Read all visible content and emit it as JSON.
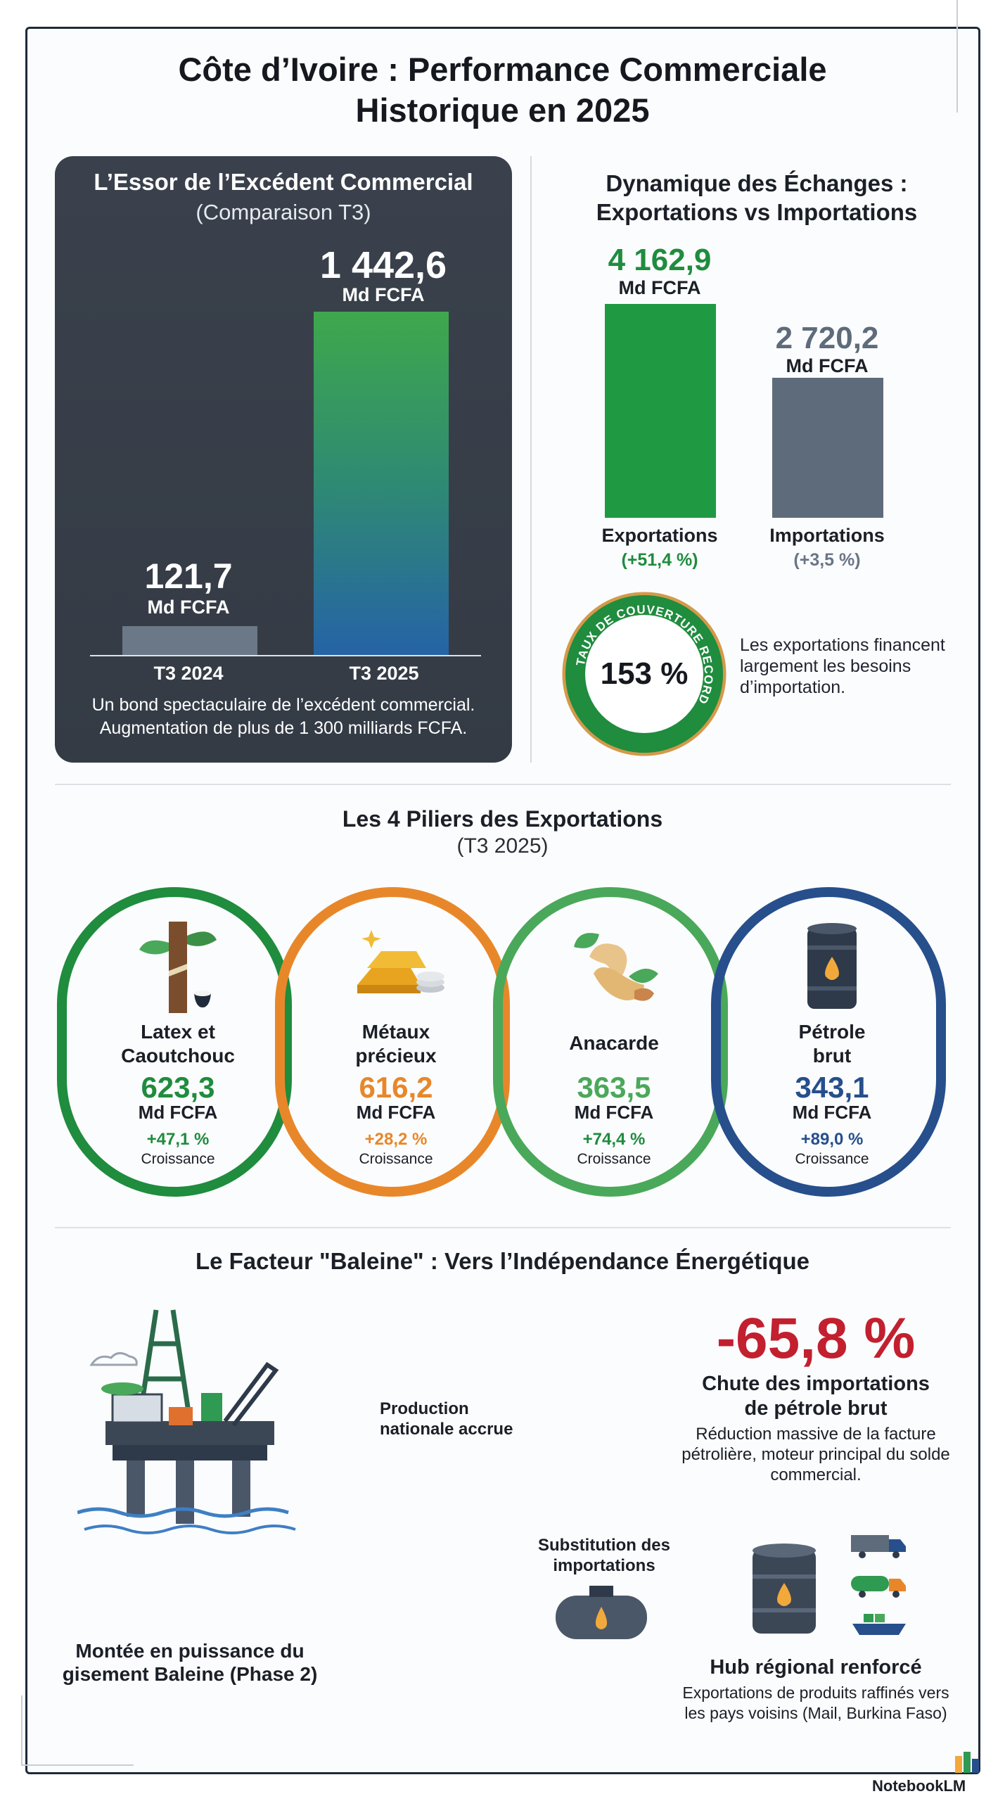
{
  "title": "Côte d’Ivoire : Performance Commerciale Historique en 2025",
  "colors": {
    "green": "#1f8c3e",
    "orange": "#e8872a",
    "lightgreen": "#4aa85a",
    "blue": "#264f8c",
    "slate": "#5e6b7b",
    "red": "#c2202f",
    "dark_panel": "#363d47"
  },
  "chart_data": [
    {
      "type": "bar",
      "title": "L’Essor de l’Excédent Commercial",
      "subtitle": "(Comparaison T3)",
      "categories": [
        "T3 2024",
        "T3 2025"
      ],
      "values": [
        121.7,
        1442.6
      ],
      "value_labels": [
        "121,7",
        "1 442,6"
      ],
      "unit": "Md FCFA",
      "caption": "Un bond spectaculaire de l’excédent commercial. Augmentation de plus de 1 300 milliards FCFA."
    },
    {
      "type": "bar",
      "title": "Dynamique des Échanges : Exportations vs Importations",
      "categories": [
        "Exportations",
        "Importations"
      ],
      "values": [
        4162.9,
        2720.2
      ],
      "value_labels": [
        "4 162,9",
        "2 720,2"
      ],
      "unit": "Md FCFA",
      "changes": [
        "(+51,4 %)",
        "(+3,5 %)"
      ],
      "coverage": {
        "ring_text": "TAUX DE COUVERTURE RECORD",
        "value": "153 %",
        "note": "Les exportations financent largement les besoins d’importation."
      }
    },
    {
      "type": "table",
      "title": "Les 4 Piliers des Exportations",
      "subtitle": "(T3 2025)",
      "items": [
        {
          "name": "Latex et Caoutchouc",
          "value": 623.3,
          "value_label": "623,3",
          "unit": "Md FCFA",
          "growth": "+47,1 %",
          "growth_label": "Croissance",
          "icon": "rubber-tree-icon",
          "color": "#1f8c3e"
        },
        {
          "name": "Métaux précieux",
          "value": 616.2,
          "value_label": "616,2",
          "unit": "Md FCFA",
          "growth": "+28,2 %",
          "growth_label": "Croissance",
          "icon": "gold-bars-icon",
          "color": "#e8872a"
        },
        {
          "name": "Anacarde",
          "value": 363.5,
          "value_label": "363,5",
          "unit": "Md FCFA",
          "growth": "+74,4 %",
          "growth_label": "Croissance",
          "icon": "cashew-icon",
          "color": "#4aa85a"
        },
        {
          "name": "Pétrole brut",
          "value": 343.1,
          "value_label": "343,1",
          "unit": "Md FCFA",
          "growth": "+89,0 %",
          "growth_label": "Croissance",
          "icon": "oil-barrel-icon",
          "color": "#264f8c"
        }
      ]
    }
  ],
  "baleine": {
    "title": "Le Facteur \"Baleine\" : Vers l’Indépendance Énergétique",
    "rig_caption": "Montée en puissance du gisement Baleine (Phase 2)",
    "flow_production": "Production nationale accrue",
    "flow_substitution": "Substitution des importations",
    "drop_value": "-65,8 %",
    "drop_title": "Chute des importations de pétrole brut",
    "drop_desc": "Réduction massive de la facture pétrolière, moteur principal du solde commercial.",
    "hub_title": "Hub régional renforcé",
    "hub_desc": "Exportations de produits raffinés vers les pays voisins (Mail, Burkina Faso)"
  },
  "brand": "NotebookLM"
}
